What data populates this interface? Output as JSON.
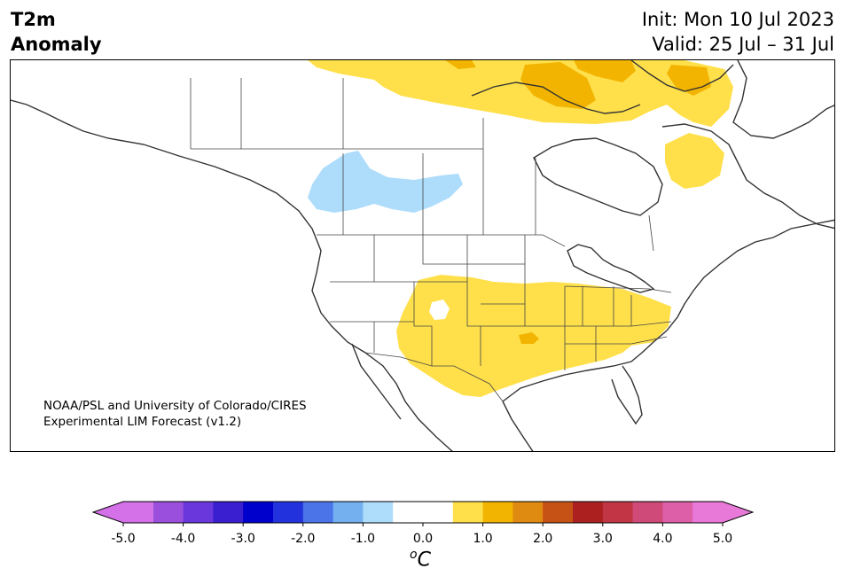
{
  "header": {
    "variable_line1": "T2m",
    "variable_line2": "Anomaly",
    "init_text": "Init: Mon 10 Jul 2023",
    "valid_text": "Valid: 25 Jul – 31 Jul"
  },
  "credit": {
    "line1": "NOAA/PSL and University of Colorado/CIRES",
    "line2": "Experimental LIM Forecast (v1.2)"
  },
  "colorbar": {
    "unit_superscript": "o",
    "unit_letter": "C",
    "tick_labels": [
      "-5.0",
      "-4.0",
      "-3.0",
      "-2.0",
      "-1.0",
      "0.0",
      "1.0",
      "2.0",
      "3.0",
      "4.0",
      "5.0"
    ],
    "colors": [
      "#d470e8",
      "#9b4fdd",
      "#6a37dd",
      "#3a1fd0",
      "#0000cc",
      "#2233dd",
      "#4a74e8",
      "#74b0f0",
      "#aedcfb",
      "#ffffff",
      "#ffffff",
      "#ffe04a",
      "#f2b400",
      "#df8a10",
      "#c75215",
      "#ad2020",
      "#c23545",
      "#cf4a78",
      "#dc5fa7",
      "#e879d9"
    ]
  },
  "legend_colors": {
    "cool_anomaly": "#aedcfb",
    "warm_anomaly": "#ffe04a",
    "strong_warm_anomaly": "#f2b400"
  }
}
